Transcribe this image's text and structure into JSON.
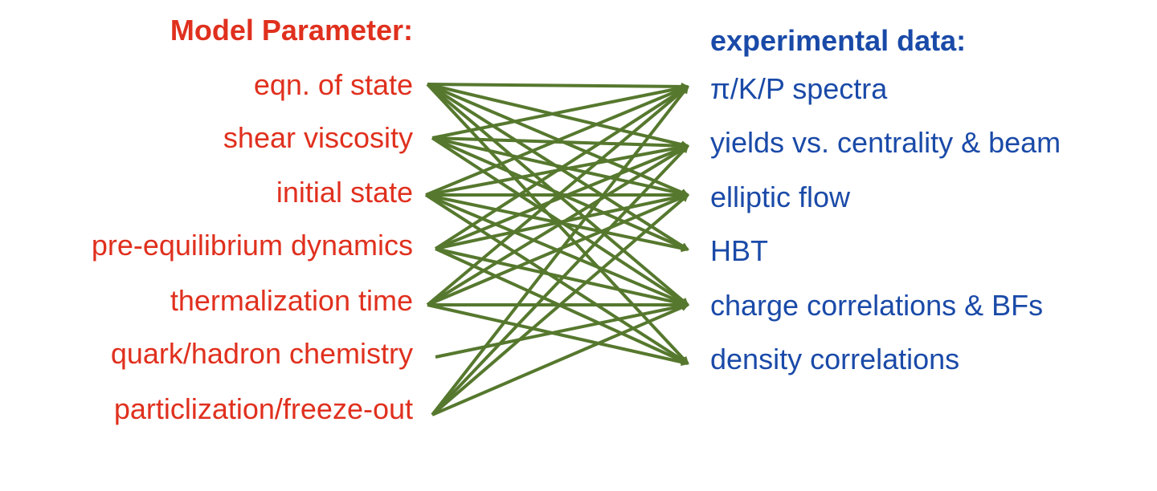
{
  "colors": {
    "param": "#e0301e",
    "data": "#1a4aa8",
    "arrow": "#56782e"
  },
  "parameters": {
    "heading": "Model Parameter:",
    "items": [
      "eqn. of state",
      "shear viscosity",
      "initial state",
      "pre-equilibrium dynamics",
      "thermalization time",
      "quark/hadron chemistry",
      "particlization/freeze-out"
    ]
  },
  "observables": {
    "heading": "experimental data:",
    "items": [
      "π/K/P spectra",
      "yields vs. centrality & beam",
      "elliptic flow",
      "HBT",
      "charge correlations & BFs",
      "density correlations"
    ]
  },
  "connections": [
    [
      0,
      0
    ],
    [
      0,
      1
    ],
    [
      0,
      2
    ],
    [
      0,
      3
    ],
    [
      0,
      4
    ],
    [
      0,
      5
    ],
    [
      1,
      0
    ],
    [
      1,
      1
    ],
    [
      1,
      2
    ],
    [
      1,
      3
    ],
    [
      1,
      4
    ],
    [
      2,
      0
    ],
    [
      2,
      1
    ],
    [
      2,
      2
    ],
    [
      2,
      3
    ],
    [
      2,
      4
    ],
    [
      2,
      5
    ],
    [
      3,
      0
    ],
    [
      3,
      1
    ],
    [
      3,
      2
    ],
    [
      3,
      4
    ],
    [
      3,
      5
    ],
    [
      4,
      0
    ],
    [
      4,
      1
    ],
    [
      4,
      2
    ],
    [
      4,
      4
    ],
    [
      4,
      5
    ],
    [
      5,
      4
    ],
    [
      6,
      0
    ],
    [
      6,
      1
    ],
    [
      6,
      2
    ],
    [
      6,
      4
    ]
  ]
}
